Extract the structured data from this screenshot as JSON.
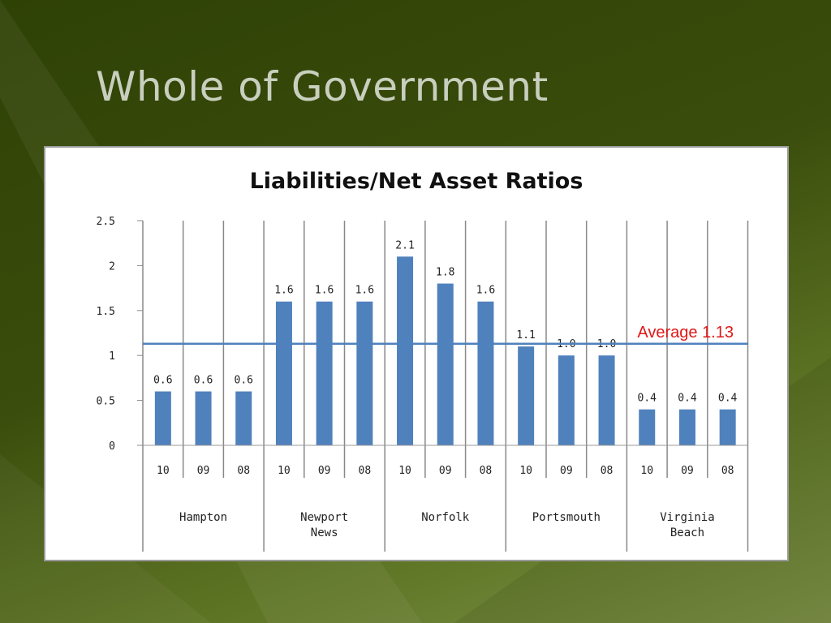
{
  "slide": {
    "title": "Whole of Government"
  },
  "chart_data": {
    "type": "bar",
    "title": "Liabilities/Net Asset Ratios",
    "xlabel": "",
    "ylabel": "",
    "ylim": [
      0,
      2.5
    ],
    "yticks": [
      "0",
      "0.5",
      "1",
      "1.5",
      "2",
      "2.5"
    ],
    "ytick_values": [
      0,
      0.5,
      1,
      1.5,
      2,
      2.5
    ],
    "grid": "vertical separators",
    "groups": [
      {
        "label_lines": [
          "Hampton"
        ],
        "categories": [
          "10",
          "09",
          "08"
        ],
        "values": [
          0.6,
          0.6,
          0.6
        ],
        "value_labels": [
          "0.6",
          "0.6",
          "0.6"
        ]
      },
      {
        "label_lines": [
          "Newport",
          "News"
        ],
        "categories": [
          "10",
          "09",
          "08"
        ],
        "values": [
          1.6,
          1.6,
          1.6
        ],
        "value_labels": [
          "1.6",
          "1.6",
          "1.6"
        ]
      },
      {
        "label_lines": [
          "Norfolk"
        ],
        "categories": [
          "10",
          "09",
          "08"
        ],
        "values": [
          2.1,
          1.8,
          1.6
        ],
        "value_labels": [
          "2.1",
          "1.8",
          "1.6"
        ]
      },
      {
        "label_lines": [
          "Portsmouth"
        ],
        "categories": [
          "10",
          "09",
          "08"
        ],
        "values": [
          1.1,
          1.0,
          1.0
        ],
        "value_labels": [
          "1.1",
          "1.0",
          "1.0"
        ]
      },
      {
        "label_lines": [
          "Virginia",
          "Beach"
        ],
        "categories": [
          "10",
          "09",
          "08"
        ],
        "values": [
          0.4,
          0.4,
          0.4
        ],
        "value_labels": [
          "0.4",
          "0.4",
          "0.4"
        ]
      }
    ],
    "reference_line": {
      "label": "Average 1.13",
      "value": 1.13,
      "color": "#4f81bd",
      "label_color": "#e01818"
    },
    "bar_color": "#4f81bd"
  }
}
